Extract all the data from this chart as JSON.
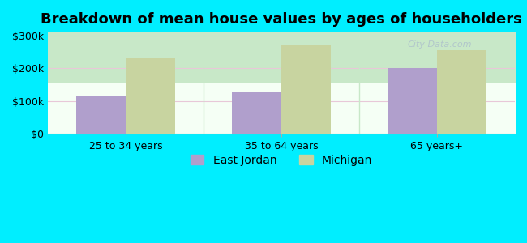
{
  "title": "Breakdown of mean house values by ages of householders",
  "categories": [
    "25 to 34 years",
    "35 to 64 years",
    "65 years+"
  ],
  "east_jordan": [
    115000,
    130000,
    200000
  ],
  "michigan": [
    230000,
    270000,
    255000
  ],
  "east_jordan_color": "#b09fcc",
  "michigan_color": "#c8d4a0",
  "background_color": "#00eeff",
  "plot_bg_top": "#c8e8c8",
  "plot_bg_bottom": "#f5fff5",
  "ylim": [
    0,
    310000
  ],
  "yticks": [
    0,
    100000,
    200000,
    300000
  ],
  "ytick_labels": [
    "$0",
    "$100k",
    "$200k",
    "$300k"
  ],
  "legend_east_jordan": "East Jordan",
  "legend_michigan": "Michigan",
  "bar_width": 0.32,
  "title_fontsize": 13,
  "tick_fontsize": 9,
  "legend_fontsize": 10,
  "grid_color": "#e8c8d8",
  "separator_color": "#c8e8c8"
}
